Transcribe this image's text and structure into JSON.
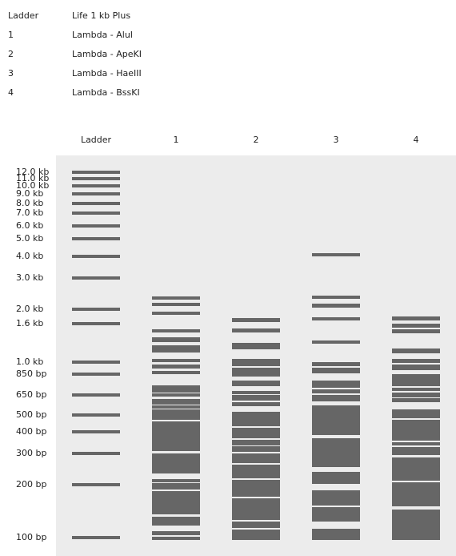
{
  "legend": [
    {
      "lane": "Ladder",
      "enzyme": "Life 1 kb Plus"
    },
    {
      "lane": "1",
      "enzyme": "Lambda - AluI"
    },
    {
      "lane": "2",
      "enzyme": "Lambda - ApeKI"
    },
    {
      "lane": "3",
      "enzyme": "Lambda - HaeIII"
    },
    {
      "lane": "4",
      "enzyme": "Lambda - BssKI"
    }
  ],
  "lanes": [
    "Ladder",
    "1",
    "2",
    "3",
    "4"
  ],
  "ladder_labels": [
    "12.0 kb",
    "11.0 kb",
    "10.0 kb",
    "9.0 kb",
    "8.0 kb",
    "7.0 kb",
    "6.0 kb",
    "5.0 kb",
    "4.0 kb",
    "3.0 kb",
    "2.0 kb",
    "1.6 kb",
    "1.0 kb",
    "850 bp",
    "650 bp",
    "500 bp",
    "400 bp",
    "300 bp",
    "200 bp",
    "100 bp"
  ]
}
